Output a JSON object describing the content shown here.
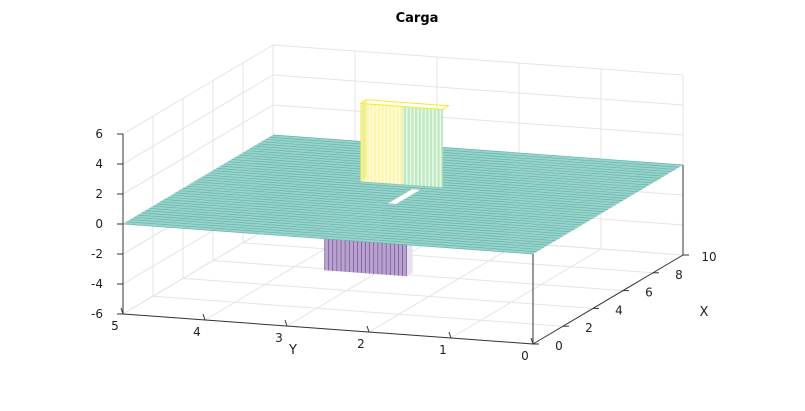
{
  "chart_data": {
    "type": "surface",
    "title": "Carga",
    "xlabel": "X",
    "ylabel": "Y",
    "zlabel": "",
    "xlim": [
      0,
      10
    ],
    "ylim": [
      0,
      5
    ],
    "zlim": [
      -6,
      6
    ],
    "xticks": [
      "0",
      "2",
      "4",
      "6",
      "8",
      "10"
    ],
    "yticks": [
      "0",
      "1",
      "2",
      "3",
      "4",
      "5"
    ],
    "zticks": [
      "-6",
      "-4",
      "-2",
      "0",
      "2",
      "4",
      "6"
    ],
    "grid": true,
    "colormap": [
      "#440154",
      "#3b528b",
      "#21918c",
      "#5ec962",
      "#fde725"
    ],
    "base_value": 0,
    "features": [
      {
        "name": "positive_charge",
        "x_range": [
          6.0,
          6.4
        ],
        "y_range": [
          2.2,
          3.2
        ],
        "z": 5.2
      },
      {
        "name": "negative_charge",
        "x_range": [
          3.6,
          4.0
        ],
        "y_range": [
          2.2,
          3.2
        ],
        "z": -4.5
      }
    ]
  }
}
